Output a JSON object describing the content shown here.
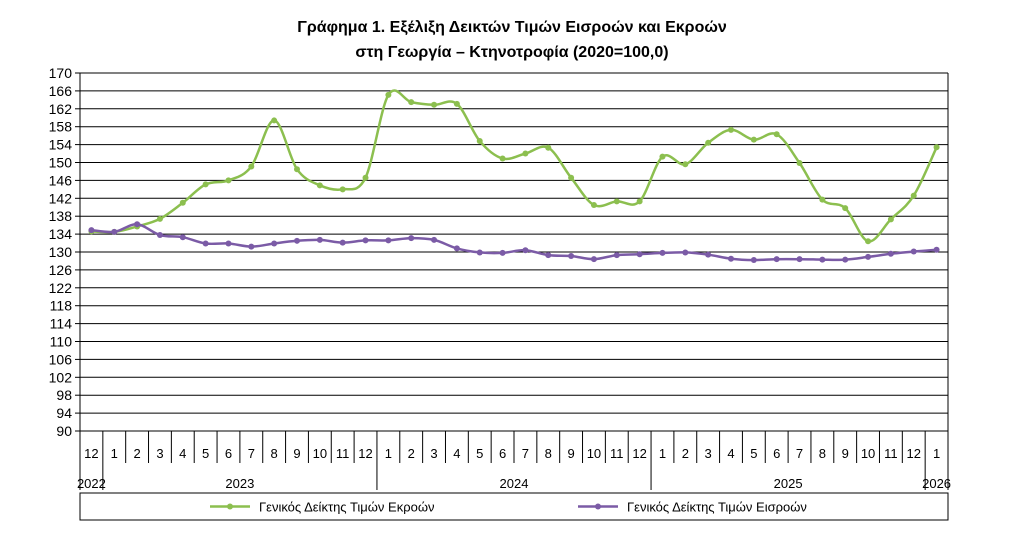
{
  "chart_data": {
    "type": "line",
    "title_line1": "Γράφημα 1. Εξέλιξη Δεικτών Τιμών Εισροών και Εκροών",
    "title_line2": "στη Γεωργία – Κτηνοτροφία (2020=100,0)",
    "ylim": [
      90,
      170
    ],
    "yticks": [
      90,
      94,
      98,
      102,
      106,
      110,
      114,
      118,
      122,
      126,
      130,
      134,
      138,
      142,
      146,
      150,
      154,
      158,
      162,
      166,
      170
    ],
    "months": [
      "12",
      "1",
      "2",
      "3",
      "4",
      "5",
      "6",
      "7",
      "8",
      "9",
      "10",
      "11",
      "12",
      "1",
      "2",
      "3",
      "4",
      "5",
      "6",
      "7",
      "8",
      "9",
      "10",
      "11",
      "12",
      "1",
      "2",
      "3",
      "4",
      "5",
      "6",
      "7",
      "8",
      "9",
      "10",
      "11",
      "12",
      "1"
    ],
    "years": [
      {
        "label": "2022",
        "start": 0,
        "end": 0
      },
      {
        "label": "2023",
        "start": 1,
        "end": 12
      },
      {
        "label": "2024",
        "start": 13,
        "end": 24
      },
      {
        "label": "2025",
        "start": 25,
        "end": 36
      },
      {
        "label": "2026",
        "start": 37,
        "end": 37
      }
    ],
    "series": [
      {
        "name": "Γενικός Δείκτης Τιμών Εκροών",
        "color": "#8CBF4F",
        "values": [
          134.6,
          134.5,
          135.7,
          137.4,
          141.0,
          145.1,
          146.0,
          149.1,
          159.4,
          148.5,
          144.9,
          144.0,
          146.6,
          165.1,
          163.5,
          162.9,
          163.1,
          154.8,
          150.9,
          152.0,
          153.3,
          146.6,
          140.5,
          141.3,
          141.3,
          151.3,
          149.6,
          154.4,
          157.3,
          155.1,
          156.3,
          149.9,
          141.7,
          139.8,
          132.4,
          137.3,
          142.6,
          153.4
        ]
      },
      {
        "name": "Γενικός Δείκτης Τιμών Εισροών",
        "color": "#7B5BA6",
        "values": [
          134.9,
          134.5,
          136.2,
          133.8,
          133.3,
          131.9,
          131.9,
          131.2,
          131.9,
          132.5,
          132.7,
          132.1,
          132.6,
          132.6,
          133.1,
          132.7,
          130.8,
          129.9,
          129.8,
          130.4,
          129.3,
          129.1,
          128.4,
          129.3,
          129.5,
          129.8,
          129.9,
          129.4,
          128.5,
          128.2,
          128.4,
          128.4,
          128.3,
          128.3,
          128.9,
          129.6,
          130.1,
          130.5
        ]
      }
    ]
  }
}
